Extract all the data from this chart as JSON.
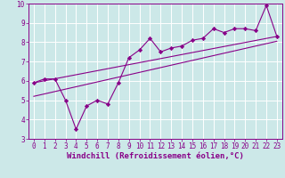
{
  "bg_color": "#cce8e8",
  "grid_color": "#aacccc",
  "line_color": "#880088",
  "xlim": [
    -0.5,
    23.5
  ],
  "ylim": [
    3,
    10
  ],
  "xticks": [
    0,
    1,
    2,
    3,
    4,
    5,
    6,
    7,
    8,
    9,
    10,
    11,
    12,
    13,
    14,
    15,
    16,
    17,
    18,
    19,
    20,
    21,
    22,
    23
  ],
  "yticks": [
    3,
    4,
    5,
    6,
    7,
    8,
    9,
    10
  ],
  "data_x": [
    0,
    1,
    2,
    3,
    4,
    5,
    6,
    7,
    8,
    9,
    10,
    11,
    12,
    13,
    14,
    15,
    16,
    17,
    18,
    19,
    20,
    21,
    22,
    23
  ],
  "data_y": [
    5.9,
    6.1,
    6.1,
    5.0,
    3.5,
    4.7,
    5.0,
    4.8,
    5.9,
    7.2,
    7.6,
    8.2,
    7.5,
    7.7,
    7.8,
    8.1,
    8.2,
    8.7,
    8.5,
    8.7,
    8.7,
    8.6,
    9.9,
    8.3
  ],
  "line1_x": [
    0,
    23
  ],
  "line1_y": [
    5.9,
    8.3
  ],
  "line2_x": [
    0,
    23
  ],
  "line2_y": [
    5.2,
    8.05
  ],
  "xlabel": "Windchill (Refroidissement éolien,°C)",
  "xlabel_fontsize": 6.5,
  "tick_fontsize": 5.5,
  "marker": "D",
  "markersize": 2.2
}
